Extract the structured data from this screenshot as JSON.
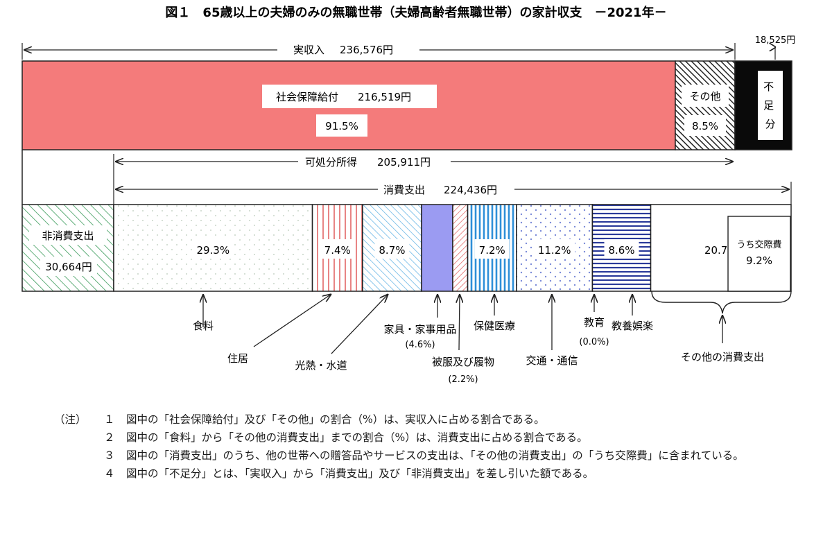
{
  "chart_data": {
    "type": "bar",
    "title": "図１　65歳以上の夫婦のみの無職世帯（夫婦高齢者無職世帯）の家計収支　－2021年－",
    "income": {
      "label": "実収入",
      "value": 236576,
      "value_text": "236,576円",
      "segments": [
        {
          "name": "社会保障給付",
          "value": 216519,
          "value_text": "216,519円",
          "pct": 91.5,
          "pct_text": "91.5%"
        },
        {
          "name": "その他",
          "value": 20057,
          "pct": 8.5,
          "pct_text": "8.5%"
        }
      ],
      "shortfall": {
        "name": "不足分",
        "value": 18525,
        "value_text": "18,525円"
      }
    },
    "disposable_income": {
      "label": "可処分所得",
      "value": 205911,
      "value_text": "205,911円"
    },
    "expenditure": {
      "label": "消費支出",
      "value": 224436,
      "value_text": "224,436円",
      "non_consumption": {
        "name": "非消費支出",
        "value": 30664,
        "value_text": "30,664円"
      },
      "categories": [
        {
          "name": "食料",
          "pct": 29.3,
          "pct_text": "29.3%"
        },
        {
          "name": "住居",
          "pct": 7.4,
          "pct_text": "7.4%"
        },
        {
          "name": "光熱・水道",
          "pct": 8.7,
          "pct_text": "8.7%"
        },
        {
          "name": "家具・家事用品",
          "pct": 4.6,
          "pct_text": "(4.6%)"
        },
        {
          "name": "被服及び履物",
          "pct": 2.2,
          "pct_text": "(2.2%)"
        },
        {
          "name": "保健医療",
          "pct": 7.2,
          "pct_text": "7.2%"
        },
        {
          "name": "交通・通信",
          "pct": 11.2,
          "pct_text": "11.2%"
        },
        {
          "name": "教育",
          "pct": 0.0,
          "pct_text": "(0.0%)"
        },
        {
          "name": "教養娯楽",
          "pct": 8.6,
          "pct_text": "8.6%"
        },
        {
          "name": "その他の消費支出",
          "pct": 20.7,
          "pct_text": "20.7%",
          "sub": {
            "name": "うち交際費",
            "pct": 9.2,
            "pct_text": "9.2%"
          }
        }
      ]
    },
    "notes_header": "（注）",
    "notes": [
      {
        "num": "１",
        "text": "図中の「社会保障給付」及び「その他」の割合（%）は、実収入に占める割合である。"
      },
      {
        "num": "２",
        "text": "図中の「食料」から「その他の消費支出」までの割合（%）は、消費支出に占める割合である。"
      },
      {
        "num": "３",
        "text": "図中の「消費支出」のうち、他の世帯への贈答品やサービスの支出は、「その他の消費支出」の「うち交際費」に含まれている。"
      },
      {
        "num": "４",
        "text": "図中の「不足分」とは、「実収入」から「消費支出」及び「非消費支出」を差し引いた額である。"
      }
    ],
    "colors": {
      "social_security": "#f47b7b",
      "furniture": "#9b9bf2",
      "housing_stripe": "#e05a5a",
      "utilities_stripe": "#6cb8e6",
      "medical_stripe": "#2e8fd8",
      "transport_dots": "#7a8ad8",
      "recreation_stripe": "#2a3a9a",
      "nonconsumption_stripe": "#3a9a5a",
      "food_dots": "#c8d8c8"
    }
  }
}
